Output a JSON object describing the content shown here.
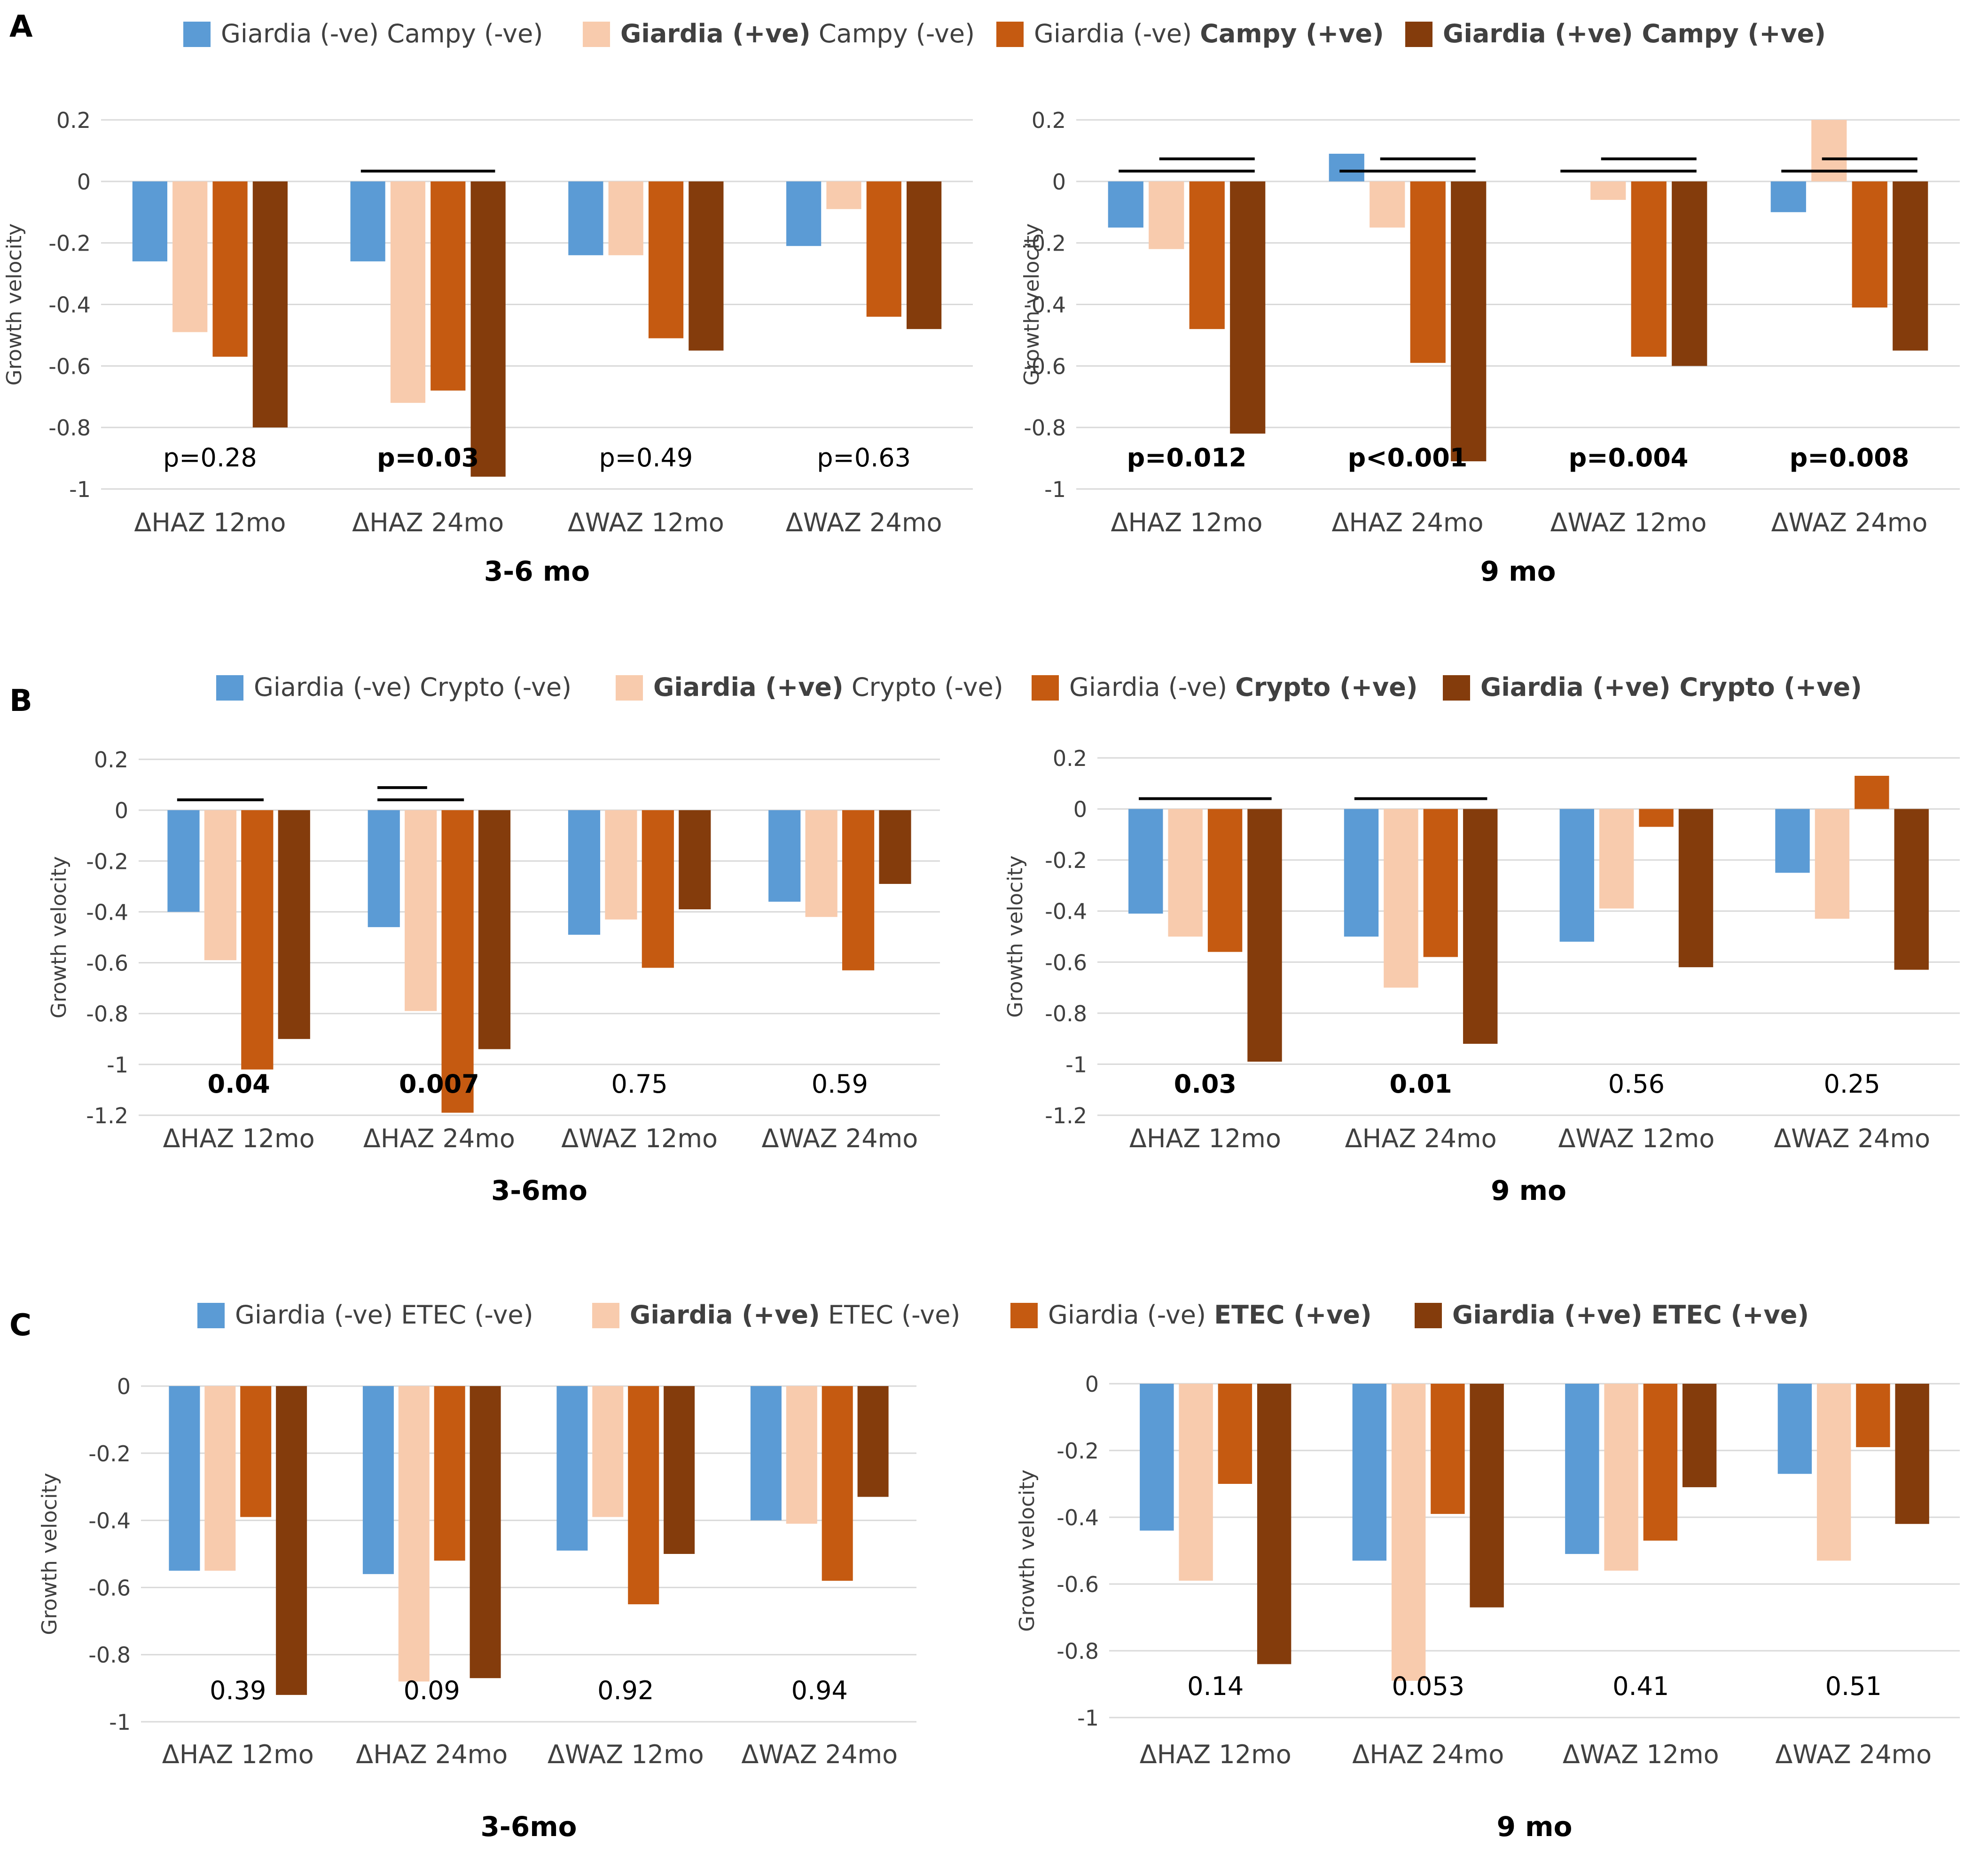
{
  "colors": {
    "g_neg_x_neg": "#5B9BD5",
    "g_pos_x_neg": "#F8CBAD",
    "g_neg_x_pos": "#C55A11",
    "g_pos_x_pos": "#843C0C",
    "grid": "#d9d9d9",
    "text": "#404040"
  },
  "chart_data": [
    {
      "panel": "A",
      "type": "bar",
      "legend": [
        {
          "p1": "Giardia (-ve) ",
          "p2": "Campy (-ve)",
          "bold1": false,
          "bold2": false
        },
        {
          "p1": "Giardia (+ve)",
          "p2": " Campy (-ve)",
          "bold1": true,
          "bold2": false
        },
        {
          "p1": "Giardia (-ve) ",
          "p2": "Campy (+ve)",
          "bold1": false,
          "bold2": true
        },
        {
          "p1": "Giardia (+ve) Campy (+ve)",
          "p2": "",
          "bold1": true,
          "bold2": false
        }
      ],
      "charts": [
        {
          "title": "3-6 mo",
          "ylabel": "Growth velocity",
          "ylim": [
            -1,
            0.2
          ],
          "yticks": [
            0.2,
            0,
            -0.2,
            -0.4,
            -0.6,
            -0.8,
            -1
          ],
          "categories": [
            "ΔHAZ 12mo",
            "ΔHAZ 24mo",
            "ΔWAZ 12mo",
            "ΔWAZ 24mo"
          ],
          "series": [
            {
              "name": "Giardia (-ve) Campy (-ve)",
              "values": [
                -0.26,
                -0.26,
                -0.24,
                -0.21
              ]
            },
            {
              "name": "Giardia (+ve) Campy (-ve)",
              "values": [
                -0.49,
                -0.72,
                -0.24,
                -0.09
              ]
            },
            {
              "name": "Giardia (-ve) Campy (+ve)",
              "values": [
                -0.57,
                -0.68,
                -0.51,
                -0.44
              ]
            },
            {
              "name": "Giardia (+ve) Campy (+ve)",
              "values": [
                -0.8,
                -0.96,
                -0.55,
                -0.48
              ]
            }
          ],
          "annotations": [
            {
              "text": "p=0.28",
              "bold": false
            },
            {
              "text": "p=0.03",
              "bold": true
            },
            {
              "text": "p=0.49",
              "bold": false
            },
            {
              "text": "p=0.63",
              "bold": false
            }
          ],
          "sig_brackets": [
            {
              "category": 1,
              "from_series": 0,
              "to_series": 3,
              "level": 0
            }
          ]
        },
        {
          "title": "9 mo",
          "ylabel": "Growth velocity",
          "ylim": [
            -1,
            0.2
          ],
          "yticks": [
            0.2,
            0,
            -0.2,
            -0.4,
            -0.6,
            -0.8,
            -1
          ],
          "categories": [
            "ΔHAZ 12mo",
            "ΔHAZ 24mo",
            "ΔWAZ 12mo",
            "ΔWAZ 24mo"
          ],
          "series": [
            {
              "name": "Giardia (-ve) Campy (-ve)",
              "values": [
                -0.15,
                0.09,
                0.0,
                -0.1
              ]
            },
            {
              "name": "Giardia (+ve) Campy (-ve)",
              "values": [
                -0.22,
                -0.15,
                -0.06,
                0.2
              ]
            },
            {
              "name": "Giardia (-ve) Campy (+ve)",
              "values": [
                -0.48,
                -0.59,
                -0.57,
                -0.41
              ]
            },
            {
              "name": "Giardia (+ve) Campy (+ve)",
              "values": [
                -0.82,
                -0.91,
                -0.6,
                -0.55
              ]
            }
          ],
          "annotations": [
            {
              "text": "p=0.012",
              "bold": true
            },
            {
              "text": "p<0.001",
              "bold": true
            },
            {
              "text": "p=0.004",
              "bold": true
            },
            {
              "text": "p=0.008",
              "bold": true
            }
          ],
          "sig_brackets": [
            {
              "category": 0,
              "from_series": 0,
              "to_series": 3,
              "level": 0
            },
            {
              "category": 0,
              "from_series": 1,
              "to_series": 3,
              "level": 1
            },
            {
              "category": 1,
              "from_series": 0,
              "to_series": 3,
              "level": 0
            },
            {
              "category": 1,
              "from_series": 1,
              "to_series": 3,
              "level": 1
            },
            {
              "category": 2,
              "from_series": 0,
              "to_series": 3,
              "level": 0
            },
            {
              "category": 2,
              "from_series": 1,
              "to_series": 3,
              "level": 1
            },
            {
              "category": 3,
              "from_series": 0,
              "to_series": 3,
              "level": 0
            },
            {
              "category": 3,
              "from_series": 1,
              "to_series": 3,
              "level": 1
            }
          ]
        }
      ]
    },
    {
      "panel": "B",
      "type": "bar",
      "legend": [
        {
          "p1": "Giardia (-ve) ",
          "p2": "Crypto (-ve)",
          "bold1": false,
          "bold2": false
        },
        {
          "p1": "Giardia (+ve)",
          "p2": " Crypto (-ve)",
          "bold1": true,
          "bold2": false
        },
        {
          "p1": "Giardia (-ve) ",
          "p2": "Crypto (+ve)",
          "bold1": false,
          "bold2": true
        },
        {
          "p1": "Giardia (+ve) Crypto (+ve)",
          "p2": "",
          "bold1": true,
          "bold2": false
        }
      ],
      "charts": [
        {
          "title": "3-6mo",
          "ylabel": "Growth velocity",
          "ylim": [
            -1.2,
            0.2
          ],
          "yticks": [
            0.2,
            0,
            -0.2,
            -0.4,
            -0.6,
            -0.8,
            -1,
            -1.2
          ],
          "categories": [
            "ΔHAZ 12mo",
            "ΔHAZ 24mo",
            "ΔWAZ 12mo",
            "ΔWAZ 24mo"
          ],
          "series": [
            {
              "name": "Giardia (-ve) Crypto (-ve)",
              "values": [
                -0.4,
                -0.46,
                -0.49,
                -0.36
              ]
            },
            {
              "name": "Giardia (+ve) Crypto (-ve)",
              "values": [
                -0.59,
                -0.79,
                -0.43,
                -0.42
              ]
            },
            {
              "name": "Giardia (-ve) Crypto (+ve)",
              "values": [
                -1.02,
                -1.19,
                -0.62,
                -0.63
              ]
            },
            {
              "name": "Giardia (+ve) Crypto (+ve)",
              "values": [
                -0.9,
                -0.94,
                -0.39,
                -0.29
              ]
            }
          ],
          "annotations": [
            {
              "text": "0.04",
              "bold": true
            },
            {
              "text": "0.007",
              "bold": true
            },
            {
              "text": "0.75",
              "bold": false
            },
            {
              "text": "0.59",
              "bold": false
            }
          ],
          "sig_brackets": [
            {
              "category": 0,
              "from_series": 0,
              "to_series": 2,
              "level": 0
            },
            {
              "category": 1,
              "from_series": 0,
              "to_series": 2,
              "level": 0
            },
            {
              "category": 1,
              "from_series": 0,
              "to_series": 1,
              "level": 1
            }
          ]
        },
        {
          "title": "9 mo",
          "ylabel": "Growth velocity",
          "ylim": [
            -1.2,
            0.2
          ],
          "yticks": [
            0.2,
            0,
            -0.2,
            -0.4,
            -0.6,
            -0.8,
            -1,
            -1.2
          ],
          "categories": [
            "ΔHAZ 12mo",
            "ΔHAZ 24mo",
            "ΔWAZ 12mo",
            "ΔWAZ 24mo"
          ],
          "series": [
            {
              "name": "Giardia (-ve) Crypto (-ve)",
              "values": [
                -0.41,
                -0.5,
                -0.52,
                -0.25
              ]
            },
            {
              "name": "Giardia (+ve) Crypto (-ve)",
              "values": [
                -0.5,
                -0.7,
                -0.39,
                -0.43
              ]
            },
            {
              "name": "Giardia (-ve) Crypto (+ve)",
              "values": [
                -0.56,
                -0.58,
                -0.07,
                0.13
              ]
            },
            {
              "name": "Giardia (+ve) Crypto (+ve)",
              "values": [
                -0.99,
                -0.92,
                -0.62,
                -0.63
              ]
            }
          ],
          "annotations": [
            {
              "text": "0.03",
              "bold": true
            },
            {
              "text": "0.01",
              "bold": true
            },
            {
              "text": "0.56",
              "bold": false
            },
            {
              "text": "0.25",
              "bold": false
            }
          ],
          "sig_brackets": [
            {
              "category": 0,
              "from_series": 0,
              "to_series": 3,
              "level": 0
            },
            {
              "category": 1,
              "from_series": 0,
              "to_series": 3,
              "level": 0
            }
          ]
        }
      ]
    },
    {
      "panel": "C",
      "type": "bar",
      "legend": [
        {
          "p1": "Giardia (-ve) ",
          "p2": "ETEC (-ve)",
          "bold1": false,
          "bold2": false
        },
        {
          "p1": "Giardia (+ve)",
          "p2": " ETEC (-ve)",
          "bold1": true,
          "bold2": false
        },
        {
          "p1": "Giardia (-ve) ",
          "p2": "ETEC (+ve)",
          "bold1": false,
          "bold2": true
        },
        {
          "p1": "Giardia (+ve) ETEC (+ve)",
          "p2": "",
          "bold1": true,
          "bold2": false
        }
      ],
      "charts": [
        {
          "title": "3-6mo",
          "ylabel": "Growth velocity",
          "ylim": [
            -1,
            0
          ],
          "yticks": [
            0,
            -0.2,
            -0.4,
            -0.6,
            -0.8,
            -1
          ],
          "categories": [
            "ΔHAZ 12mo",
            "ΔHAZ 24mo",
            "ΔWAZ 12mo",
            "ΔWAZ 24mo"
          ],
          "series": [
            {
              "name": "Giardia (-ve) ETEC (-ve)",
              "values": [
                -0.55,
                -0.56,
                -0.49,
                -0.4
              ]
            },
            {
              "name": "Giardia (+ve) ETEC (-ve)",
              "values": [
                -0.55,
                -0.88,
                -0.39,
                -0.41
              ]
            },
            {
              "name": "Giardia (-ve) ETEC (+ve)",
              "values": [
                -0.39,
                -0.52,
                -0.65,
                -0.58
              ]
            },
            {
              "name": "Giardia (+ve) ETEC (+ve)",
              "values": [
                -0.92,
                -0.87,
                -0.5,
                -0.33
              ]
            }
          ],
          "annotations": [
            {
              "text": "0.39",
              "bold": false
            },
            {
              "text": "0.09",
              "bold": false
            },
            {
              "text": "0.92",
              "bold": false
            },
            {
              "text": "0.94",
              "bold": false
            }
          ],
          "sig_brackets": []
        },
        {
          "title": "9 mo",
          "ylabel": "Growth velocity",
          "ylim": [
            -1,
            0
          ],
          "yticks": [
            0,
            -0.2,
            -0.4,
            -0.6,
            -0.8,
            -1
          ],
          "categories": [
            "ΔHAZ 12mo",
            "ΔHAZ 24mo",
            "ΔWAZ 12mo",
            "ΔWAZ 24mo"
          ],
          "series": [
            {
              "name": "Giardia (-ve) ETEC (-ve)",
              "values": [
                -0.44,
                -0.53,
                -0.51,
                -0.27
              ]
            },
            {
              "name": "Giardia (+ve) ETEC (-ve)",
              "values": [
                -0.59,
                -0.89,
                -0.56,
                -0.53
              ]
            },
            {
              "name": "Giardia (-ve) ETEC (+ve)",
              "values": [
                -0.3,
                -0.39,
                -0.47,
                -0.19
              ]
            },
            {
              "name": "Giardia (+ve) ETEC (+ve)",
              "values": [
                -0.84,
                -0.67,
                -0.31,
                -0.42
              ]
            }
          ],
          "annotations": [
            {
              "text": "0.14",
              "bold": false
            },
            {
              "text": "0.053",
              "bold": false
            },
            {
              "text": "0.41",
              "bold": false
            },
            {
              "text": "0.51",
              "bold": false
            }
          ],
          "sig_brackets": []
        }
      ]
    }
  ]
}
